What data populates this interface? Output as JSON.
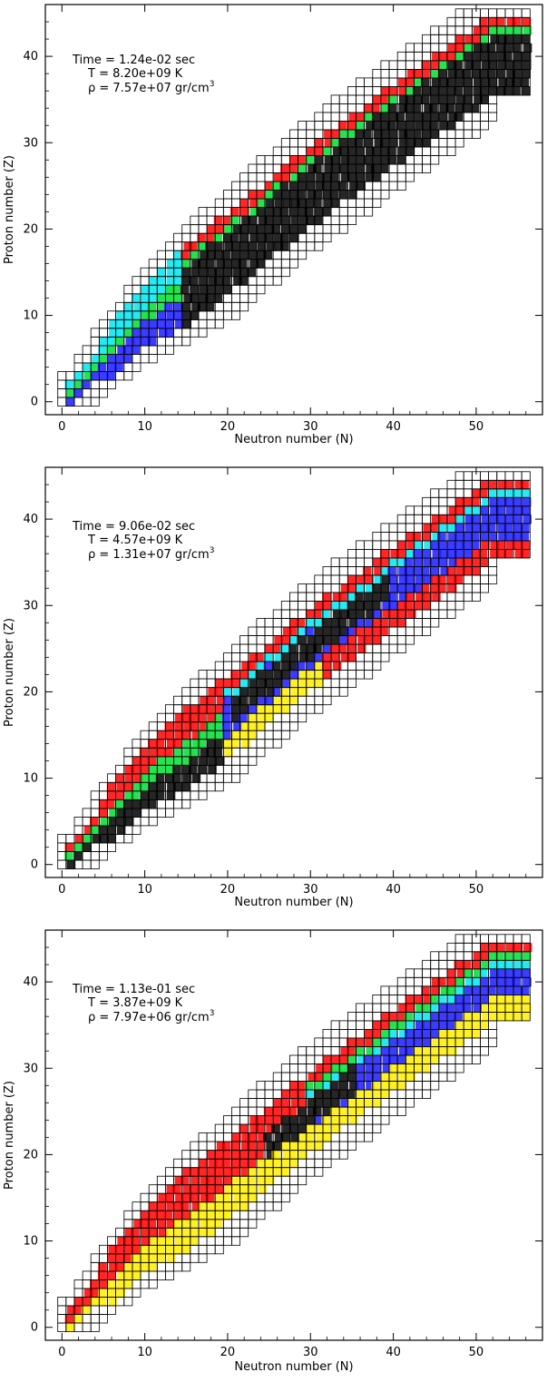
{
  "chart_data": [
    {
      "type": "heatmap",
      "xlabel": "Neutron number (N)",
      "ylabel": "Proton number (Z)",
      "xlim": [
        -2,
        58
      ],
      "ylim": [
        -1.5,
        46
      ],
      "xticks": [
        0,
        10,
        20,
        30,
        40,
        50
      ],
      "yticks": [
        0,
        10,
        20,
        30,
        40
      ],
      "annotation": {
        "time": "Time = 1.24e-02 sec",
        "temperature": "T = 8.20e+09 K",
        "density_prefix": "ρ = 7.57e+07 gr/cm",
        "density_exp": "3"
      },
      "band_center": [
        [
          1,
          1
        ],
        [
          10,
          10
        ],
        [
          20,
          17
        ],
        [
          30,
          25
        ],
        [
          40,
          32
        ],
        [
          52,
          40
        ]
      ],
      "colors": {
        "network": "#000000",
        "red": "#ff0000",
        "green": "#00dd33",
        "cyan": "#00e5ee",
        "blue": "#1a1aff",
        "yellow": "#ffee00",
        "black": "#000000"
      }
    },
    {
      "type": "heatmap",
      "xlabel": "Neutron number (N)",
      "ylabel": "Proton number (Z)",
      "xlim": [
        -2,
        58
      ],
      "ylim": [
        -1.5,
        46
      ],
      "xticks": [
        0,
        10,
        20,
        30,
        40,
        50
      ],
      "yticks": [
        0,
        10,
        20,
        30,
        40
      ],
      "annotation": {
        "time": "Time = 9.06e-02 sec",
        "temperature": "T = 4.57e+09 K",
        "density_prefix": "ρ = 1.31e+07 gr/cm",
        "density_exp": "3"
      }
    },
    {
      "type": "heatmap",
      "xlabel": "Neutron number (N)",
      "ylabel": "Proton number (Z)",
      "xlim": [
        -2,
        58
      ],
      "ylim": [
        -1.5,
        46
      ],
      "xticks": [
        0,
        10,
        20,
        30,
        40,
        50
      ],
      "yticks": [
        0,
        10,
        20,
        30,
        40
      ],
      "annotation": {
        "time": "Time = 1.13e-01 sec",
        "temperature": "T = 3.87e+09 K",
        "density_prefix": "ρ = 7.97e+06 gr/cm",
        "density_exp": "3"
      }
    }
  ]
}
